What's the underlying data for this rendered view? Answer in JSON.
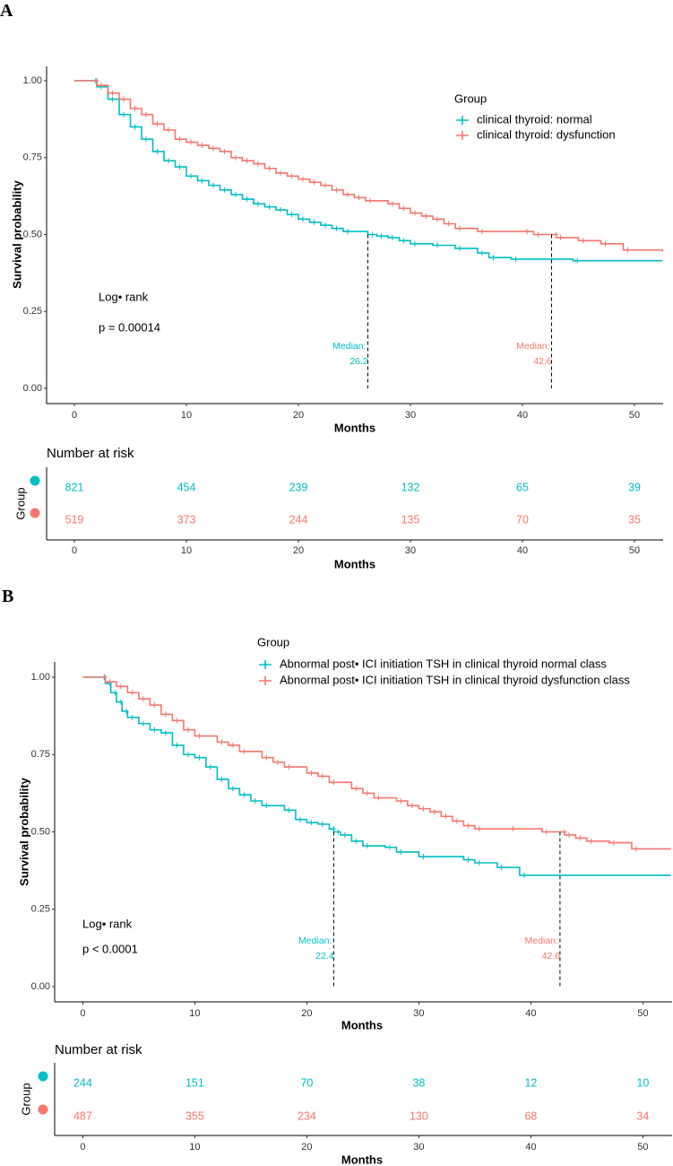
{
  "chart_data": [
    {
      "panel_label": "A",
      "type": "line",
      "xlabel": "Months",
      "ylabel": "Survival probability",
      "xlim": [
        -2.5,
        52.5
      ],
      "ylim": [
        0,
        1
      ],
      "xticks": [
        "0",
        "10",
        "20",
        "30",
        "40",
        "50"
      ],
      "yticks": [
        "0.00",
        "0.25",
        "0.50",
        "0.75",
        "1.00"
      ],
      "legend_title": "Group",
      "legend_position": "top-right",
      "test_label": "Log• rank",
      "pvalue": "p = 0.00014",
      "median_label": "Median:",
      "series": [
        {
          "name": "clinical thyroid: normal",
          "color": "#00BFC4",
          "median": "26.2",
          "points": [
            [
              0,
              1
            ],
            [
              1.5,
              1
            ],
            [
              2,
              0.98
            ],
            [
              3,
              0.94
            ],
            [
              4,
              0.89
            ],
            [
              5,
              0.85
            ],
            [
              6,
              0.81
            ],
            [
              7,
              0.77
            ],
            [
              8,
              0.74
            ],
            [
              9,
              0.72
            ],
            [
              10,
              0.69
            ],
            [
              11,
              0.675
            ],
            [
              12,
              0.66
            ],
            [
              13,
              0.645
            ],
            [
              14,
              0.63
            ],
            [
              15,
              0.615
            ],
            [
              16,
              0.6
            ],
            [
              17,
              0.59
            ],
            [
              18,
              0.58
            ],
            [
              19,
              0.565
            ],
            [
              20,
              0.55
            ],
            [
              21,
              0.54
            ],
            [
              22,
              0.53
            ],
            [
              23,
              0.52
            ],
            [
              24,
              0.51
            ],
            [
              26.2,
              0.5
            ],
            [
              27,
              0.495
            ],
            [
              28,
              0.49
            ],
            [
              29,
              0.48
            ],
            [
              30,
              0.47
            ],
            [
              32,
              0.465
            ],
            [
              34,
              0.455
            ],
            [
              36,
              0.44
            ],
            [
              37,
              0.425
            ],
            [
              39,
              0.42
            ],
            [
              44.5,
              0.415
            ],
            [
              52.5,
              0.415
            ]
          ]
        },
        {
          "name": "clinical thyroid: dysfunction",
          "color": "#F8766D",
          "median": "42.6",
          "points": [
            [
              0,
              1
            ],
            [
              1.6,
              1
            ],
            [
              2,
              0.985
            ],
            [
              3,
              0.96
            ],
            [
              4,
              0.94
            ],
            [
              5,
              0.91
            ],
            [
              6,
              0.89
            ],
            [
              7,
              0.86
            ],
            [
              8,
              0.84
            ],
            [
              9,
              0.81
            ],
            [
              10,
              0.8
            ],
            [
              11,
              0.79
            ],
            [
              12,
              0.78
            ],
            [
              13,
              0.77
            ],
            [
              14,
              0.75
            ],
            [
              15,
              0.74
            ],
            [
              16,
              0.73
            ],
            [
              17,
              0.715
            ],
            [
              18,
              0.7
            ],
            [
              19,
              0.69
            ],
            [
              20,
              0.68
            ],
            [
              21,
              0.67
            ],
            [
              22,
              0.66
            ],
            [
              23,
              0.645
            ],
            [
              24,
              0.63
            ],
            [
              25,
              0.62
            ],
            [
              26,
              0.61
            ],
            [
              28,
              0.6
            ],
            [
              29,
              0.585
            ],
            [
              30,
              0.57
            ],
            [
              31,
              0.56
            ],
            [
              32,
              0.55
            ],
            [
              33,
              0.535
            ],
            [
              34,
              0.52
            ],
            [
              36,
              0.51
            ],
            [
              40,
              0.51
            ],
            [
              41,
              0.5
            ],
            [
              42.6,
              0.5
            ],
            [
              43,
              0.49
            ],
            [
              45,
              0.48
            ],
            [
              47,
              0.47
            ],
            [
              49,
              0.45
            ],
            [
              52.5,
              0.445
            ]
          ]
        }
      ],
      "risk_table": {
        "title": "Number at risk",
        "ylabel": "Group",
        "xlabel": "Months",
        "rows": [
          [
            "821",
            "454",
            "239",
            "132",
            "65",
            "39"
          ],
          [
            "519",
            "373",
            "244",
            "135",
            "70",
            "35"
          ]
        ]
      }
    },
    {
      "panel_label": "B",
      "type": "line",
      "xlabel": "Months",
      "ylabel": "Survival probability",
      "xlim": [
        -2.5,
        52.5
      ],
      "ylim": [
        0,
        1
      ],
      "xticks": [
        "0",
        "10",
        "20",
        "30",
        "40",
        "50"
      ],
      "yticks": [
        "0.00",
        "0.25",
        "0.50",
        "0.75",
        "1.00"
      ],
      "legend_title": "Group",
      "legend_position": "top",
      "test_label": "Log• rank",
      "pvalue": "p < 0.0001",
      "median_label": "Median:",
      "series": [
        {
          "name": "Abnormal post• ICI initiation TSH in clinical thyroid normal class",
          "color": "#00BFC4",
          "median": "22.4",
          "points": [
            [
              0,
              1
            ],
            [
              1.5,
              1
            ],
            [
              2,
              0.98
            ],
            [
              2.5,
              0.95
            ],
            [
              3,
              0.92
            ],
            [
              3.5,
              0.89
            ],
            [
              4,
              0.87
            ],
            [
              5,
              0.85
            ],
            [
              6,
              0.83
            ],
            [
              7,
              0.82
            ],
            [
              8,
              0.78
            ],
            [
              9,
              0.75
            ],
            [
              10,
              0.74
            ],
            [
              11,
              0.71
            ],
            [
              12,
              0.67
            ],
            [
              13,
              0.64
            ],
            [
              14,
              0.62
            ],
            [
              15,
              0.6
            ],
            [
              16,
              0.585
            ],
            [
              18,
              0.57
            ],
            [
              19,
              0.54
            ],
            [
              20,
              0.53
            ],
            [
              21,
              0.525
            ],
            [
              22,
              0.51
            ],
            [
              22.4,
              0.5
            ],
            [
              23,
              0.49
            ],
            [
              24,
              0.47
            ],
            [
              25,
              0.455
            ],
            [
              27,
              0.45
            ],
            [
              28,
              0.435
            ],
            [
              30,
              0.42
            ],
            [
              34,
              0.41
            ],
            [
              35,
              0.4
            ],
            [
              37,
              0.385
            ],
            [
              39,
              0.36
            ],
            [
              52.5,
              0.36
            ]
          ]
        },
        {
          "name": "Abnormal post• ICI initiation TSH in clinical thyroid dysfunction class",
          "color": "#F8766D",
          "median": "42.6",
          "points": [
            [
              0,
              1
            ],
            [
              1.6,
              1
            ],
            [
              2,
              0.985
            ],
            [
              3,
              0.97
            ],
            [
              4,
              0.95
            ],
            [
              5,
              0.93
            ],
            [
              6,
              0.91
            ],
            [
              7,
              0.88
            ],
            [
              8,
              0.86
            ],
            [
              9,
              0.83
            ],
            [
              10,
              0.81
            ],
            [
              12,
              0.79
            ],
            [
              13,
              0.78
            ],
            [
              14,
              0.76
            ],
            [
              16,
              0.74
            ],
            [
              17,
              0.725
            ],
            [
              18,
              0.71
            ],
            [
              20,
              0.69
            ],
            [
              21,
              0.68
            ],
            [
              22,
              0.66
            ],
            [
              24,
              0.64
            ],
            [
              25,
              0.625
            ],
            [
              26,
              0.61
            ],
            [
              28,
              0.6
            ],
            [
              29,
              0.585
            ],
            [
              30,
              0.575
            ],
            [
              31,
              0.565
            ],
            [
              32,
              0.55
            ],
            [
              33,
              0.535
            ],
            [
              34,
              0.52
            ],
            [
              35,
              0.51
            ],
            [
              38,
              0.51
            ],
            [
              41,
              0.5
            ],
            [
              42.6,
              0.5
            ],
            [
              43,
              0.49
            ],
            [
              44,
              0.48
            ],
            [
              45,
              0.47
            ],
            [
              47,
              0.465
            ],
            [
              49,
              0.445
            ],
            [
              52.5,
              0.445
            ]
          ]
        }
      ],
      "risk_table": {
        "title": "Number at risk",
        "ylabel": "Group",
        "xlabel": "Months",
        "rows": [
          [
            "244",
            "151",
            "70",
            "38",
            "12",
            "10"
          ],
          [
            "487",
            "355",
            "234",
            "130",
            "68",
            "34"
          ]
        ]
      }
    }
  ]
}
